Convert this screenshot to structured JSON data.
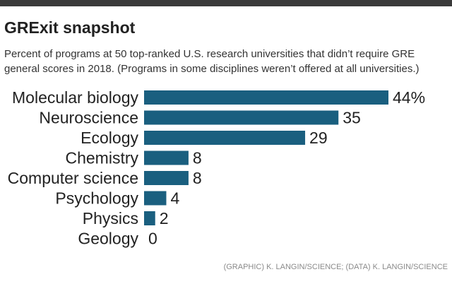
{
  "header": {
    "title": "GRExit snapshot",
    "subtitle": "Percent of programs at 50 top-ranked U.S. research universities that didn’t require GRE general scores in 2018. (Programs in some disciplines weren’t offered at all universities.)"
  },
  "footer": {
    "credit": "(GRAPHIC) K. LANGIN/SCIENCE; (DATA) K. LANGIN/SCIENCE"
  },
  "colors": {
    "bar": "#1a5f7f",
    "topbar": "#3a3a3a"
  },
  "chart_data": {
    "type": "bar",
    "orientation": "horizontal",
    "categories": [
      "Molecular biology",
      "Neuroscience",
      "Ecology",
      "Chemistry",
      "Computer science",
      "Psychology",
      "Physics",
      "Geology"
    ],
    "values": [
      44,
      35,
      29,
      8,
      8,
      4,
      2,
      0
    ],
    "value_labels": [
      "44%",
      "35",
      "29",
      "8",
      "8",
      "4",
      "2",
      "0"
    ],
    "title": "GRExit snapshot",
    "xlabel": "",
    "ylabel": "",
    "xlim": [
      0,
      44
    ],
    "grid": false,
    "legend": "none"
  }
}
